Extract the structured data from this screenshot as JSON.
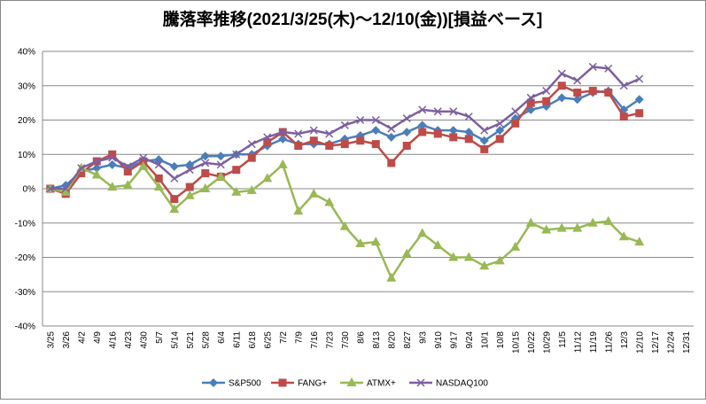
{
  "chart_data": {
    "type": "line",
    "title": "騰落率推移(2021/3/25(木)～12/10(金))[損益ベース]",
    "categories": [
      "3/25",
      "3/26",
      "4/2",
      "4/9",
      "4/16",
      "4/23",
      "4/30",
      "5/7",
      "5/14",
      "5/21",
      "5/28",
      "6/4",
      "6/11",
      "6/18",
      "6/25",
      "7/2",
      "7/9",
      "7/16",
      "7/23",
      "7/30",
      "8/6",
      "8/13",
      "8/20",
      "8/27",
      "9/3",
      "9/10",
      "9/17",
      "9/24",
      "10/1",
      "10/8",
      "10/15",
      "10/22",
      "10/29",
      "11/5",
      "11/12",
      "11/19",
      "11/26",
      "12/3",
      "12/10",
      "12/17",
      "12/24",
      "12/31"
    ],
    "series": [
      {
        "name": "S&P500",
        "color": "#4a7ebb",
        "marker": "diamond",
        "values": [
          0,
          1,
          5,
          6,
          7,
          6,
          8,
          8.5,
          6.5,
          7,
          9.5,
          9.5,
          10,
          10,
          12.5,
          14.5,
          13,
          13,
          13,
          14.5,
          15.5,
          17,
          15,
          16.5,
          18.5,
          17,
          17,
          16.5,
          14,
          17,
          20.5,
          23,
          24,
          26.5,
          26,
          28,
          28.5,
          23,
          26,
          null,
          null,
          null
        ]
      },
      {
        "name": "FANG+",
        "color": "#be4b48",
        "marker": "square",
        "values": [
          0,
          -1.5,
          4.5,
          8,
          10,
          5,
          8,
          3,
          -3,
          0.5,
          4.5,
          3.5,
          5.5,
          9,
          13.5,
          16.5,
          12.5,
          14,
          12.5,
          13,
          14,
          13,
          7.5,
          12.5,
          16.5,
          16,
          15,
          14.5,
          11.5,
          14.5,
          19,
          25,
          25.5,
          30,
          28,
          28.5,
          28,
          21,
          22,
          null,
          null,
          null
        ]
      },
      {
        "name": "ATMX+",
        "color": "#98b954",
        "marker": "triangle",
        "values": [
          0,
          -1,
          6,
          4,
          0.5,
          1,
          6.5,
          0.5,
          -6,
          -2,
          0,
          3.5,
          -1,
          -0.5,
          3,
          7,
          -6.5,
          -1.5,
          -4,
          -11,
          -16,
          -15.5,
          -26,
          -19,
          -13,
          -16.5,
          -20,
          -20,
          -22.5,
          -21,
          -17,
          -10,
          -12,
          -11.5,
          -11.5,
          -10,
          -9.5,
          -14,
          -15.5,
          null,
          null,
          null
        ]
      },
      {
        "name": "NASDAQ100",
        "color": "#7d60a0",
        "marker": "x",
        "values": [
          0,
          0,
          6,
          8,
          9,
          6.5,
          9,
          7,
          3,
          5.5,
          7.5,
          7,
          10,
          13,
          15,
          16.5,
          16,
          17,
          16,
          18.5,
          20,
          20,
          17.5,
          20.5,
          23,
          22.5,
          22.5,
          21,
          17,
          19,
          22.5,
          26.5,
          28.5,
          33.5,
          31.5,
          35.5,
          35,
          30,
          32,
          null,
          null,
          null
        ]
      }
    ],
    "ylim": [
      -40,
      40
    ],
    "yticks": [
      {
        "value": -40,
        "label": "-40%"
      },
      {
        "value": -30,
        "label": "-30%"
      },
      {
        "value": -20,
        "label": "-20%"
      },
      {
        "value": -10,
        "label": "-10%"
      },
      {
        "value": 0,
        "label": "0%"
      },
      {
        "value": 10,
        "label": "10%"
      },
      {
        "value": 20,
        "label": "20%"
      },
      {
        "value": 30,
        "label": "30%"
      },
      {
        "value": 40,
        "label": "40%"
      }
    ],
    "grid": true,
    "legend": "bottom"
  }
}
